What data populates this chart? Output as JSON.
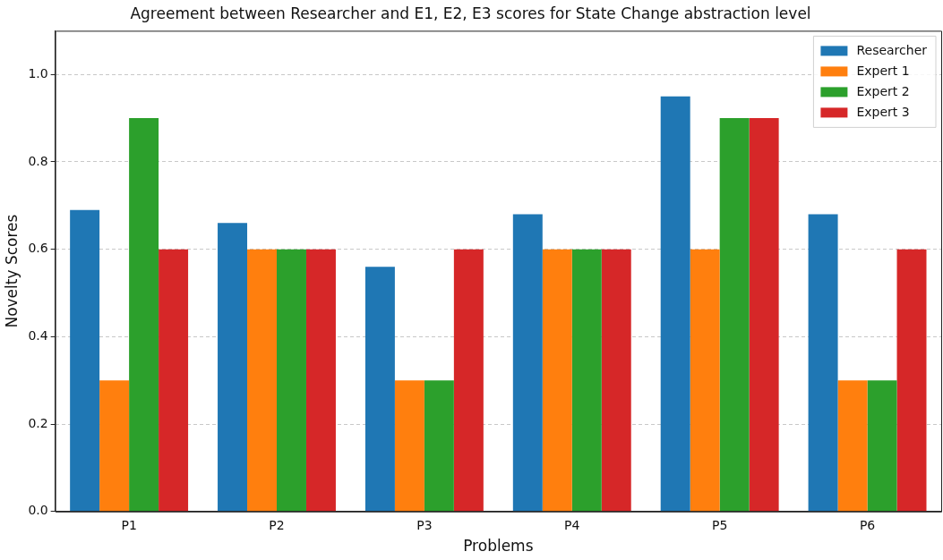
{
  "chart_data": {
    "type": "bar",
    "title": "Agreement between Researcher and E1, E2, E3 scores for State Change abstraction level",
    "xlabel": "Problems",
    "ylabel": "Novelty Scores",
    "categories": [
      "P1",
      "P2",
      "P3",
      "P4",
      "P5",
      "P6"
    ],
    "series": [
      {
        "name": "Researcher",
        "color": "#1f77b4",
        "values": [
          0.69,
          0.66,
          0.56,
          0.68,
          0.95,
          0.68
        ]
      },
      {
        "name": "Expert 1",
        "color": "#ff7f0e",
        "values": [
          0.3,
          0.6,
          0.3,
          0.6,
          0.6,
          0.3
        ]
      },
      {
        "name": "Expert 2",
        "color": "#2ca02c",
        "values": [
          0.9,
          0.6,
          0.3,
          0.6,
          0.9,
          0.3
        ]
      },
      {
        "name": "Expert 3",
        "color": "#d62728",
        "values": [
          0.6,
          0.6,
          0.6,
          0.6,
          0.9,
          0.6
        ]
      }
    ],
    "ylim": [
      0,
      1.1
    ],
    "yticks": [
      {
        "value": 0,
        "label": "0.0"
      },
      {
        "value": 0.2,
        "label": "0.2"
      },
      {
        "value": 0.4,
        "label": "0.4"
      },
      {
        "value": 0.6,
        "label": "0.6"
      },
      {
        "value": 0.8,
        "label": "0.8"
      },
      {
        "value": 1,
        "label": "1.0"
      }
    ],
    "grid": "y",
    "legend": "top right"
  }
}
